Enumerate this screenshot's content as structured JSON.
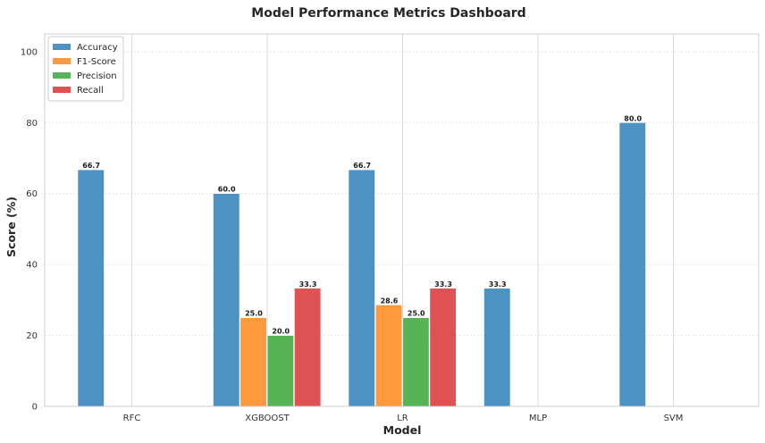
{
  "chart_data": {
    "type": "bar",
    "title": "Model Performance Metrics Dashboard",
    "xlabel": "Model",
    "ylabel": "Score (%)",
    "categories": [
      "RFC",
      "XGBOOST",
      "LR",
      "MLP",
      "SVM"
    ],
    "ylim": [
      0,
      105
    ],
    "yticks": [
      "0",
      "20",
      "40",
      "60",
      "80",
      "100"
    ],
    "grid": true,
    "legend_position": "top-left",
    "series": [
      {
        "name": "Accuracy",
        "color": "#1f77b4",
        "values": [
          66.7,
          60.0,
          66.7,
          33.3,
          80.0
        ],
        "labels": [
          "66.7",
          "60.0",
          "66.7",
          "33.3",
          "80.0"
        ]
      },
      {
        "name": "F1-Score",
        "color": "#ff7f0e",
        "values": [
          0,
          25.0,
          28.6,
          0,
          0
        ],
        "labels": [
          "",
          "25.0",
          "28.6",
          "",
          ""
        ]
      },
      {
        "name": "Precision",
        "color": "#2ca02c",
        "values": [
          0,
          20.0,
          25.0,
          0,
          0
        ],
        "labels": [
          "",
          "20.0",
          "25.0",
          "",
          ""
        ]
      },
      {
        "name": "Recall",
        "color": "#d62728",
        "values": [
          0,
          33.3,
          33.3,
          0,
          0
        ],
        "labels": [
          "",
          "33.3",
          "33.3",
          "",
          ""
        ]
      }
    ]
  }
}
